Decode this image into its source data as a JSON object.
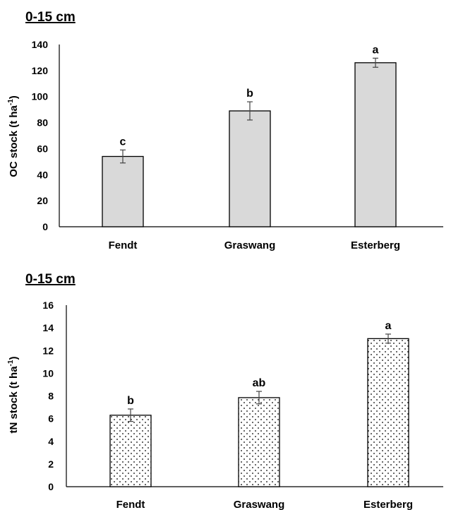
{
  "chart_data": [
    {
      "type": "bar",
      "title": "0-15 cm",
      "ylabel_main": "OC stock (t ha",
      "ylabel_sup": "-1",
      "ylabel_end": ")",
      "categories": [
        "Fendt",
        "Graswang",
        "Esterberg"
      ],
      "values": [
        54,
        89,
        126
      ],
      "errors": [
        5,
        7,
        3.5
      ],
      "letters": [
        "c",
        "b",
        "a"
      ],
      "ylim": [
        0,
        140
      ],
      "yticks": [
        "0",
        "20",
        "40",
        "60",
        "80",
        "100",
        "120",
        "140"
      ],
      "grid": false,
      "colors": {
        "bar_fill": "#d9d9d9",
        "bar_stroke": "#000000"
      }
    },
    {
      "type": "bar",
      "title": "0-15 cm",
      "ylabel_main": "tN stock (t ha",
      "ylabel_sup": "-1",
      "ylabel_end": ")",
      "categories": [
        "Fendt",
        "Graswang",
        "Esterberg"
      ],
      "values": [
        6.3,
        7.85,
        13.05
      ],
      "errors": [
        0.55,
        0.55,
        0.4
      ],
      "letters": [
        "b",
        "ab",
        "a"
      ],
      "ylim": [
        0,
        16
      ],
      "yticks": [
        "0",
        "2",
        "4",
        "6",
        "8",
        "10",
        "12",
        "14",
        "16"
      ],
      "grid": false,
      "pattern": "dotted",
      "colors": {
        "bar_fill": "#ffffff",
        "bar_stroke": "#000000",
        "dot": "#000000"
      }
    }
  ]
}
